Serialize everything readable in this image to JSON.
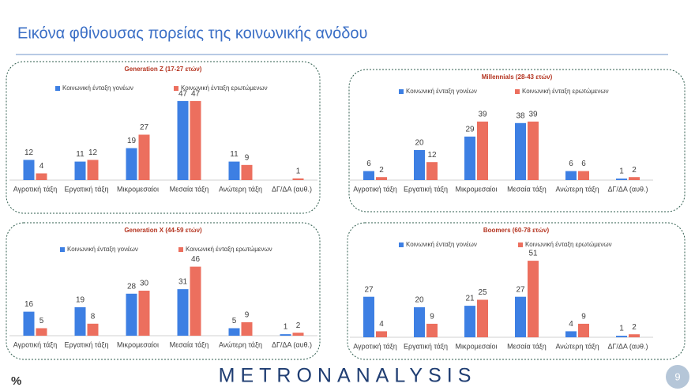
{
  "title": "Εικόνα φθίνουσας πορείας της κοινωνικής ανόδου",
  "unit": "%",
  "logo": "METRONANALYSIS",
  "page_number": "9",
  "chart_data": [
    {
      "type": "bar",
      "title": "Generation Z (17-27 ετών)",
      "categories": [
        "Αγροτική τάξη",
        "Εργατική τάξη",
        "Μικρομεσαίοι",
        "Μεσαία τάξη",
        "Ανώτερη τάξη",
        "ΔΓ/ΔΑ (αυθ.)"
      ],
      "series": [
        {
          "name": "Κοινωνική ένταξη γονέων",
          "color": "#3d7fe3",
          "values": [
            12,
            11,
            19,
            47,
            11,
            null
          ]
        },
        {
          "name": "Κοινωνική ένταξη ερωτώμενων",
          "color": "#ec6f5e",
          "values": [
            4,
            12,
            27,
            47,
            9,
            1
          ]
        }
      ]
    },
    {
      "type": "bar",
      "title": "Millennials (28-43 ετών)",
      "categories": [
        "Αγροτική τάξη",
        "Εργατική τάξη",
        "Μικρομεσαίοι",
        "Μεσαία τάξη",
        "Ανώτερη τάξη",
        "ΔΓ/ΔΑ (αυθ.)"
      ],
      "series": [
        {
          "name": "Κοινωνική ένταξη γονέων",
          "color": "#3d7fe3",
          "values": [
            6,
            20,
            29,
            38,
            6,
            1
          ]
        },
        {
          "name": "Κοινωνική ένταξη ερωτώμενων",
          "color": "#ec6f5e",
          "values": [
            2,
            12,
            39,
            39,
            6,
            2
          ]
        }
      ]
    },
    {
      "type": "bar",
      "title": "Generation X (44-59 ετών)",
      "categories": [
        "Αγροτική τάξη",
        "Εργατική τάξη",
        "Μικρομεσαίοι",
        "Μεσαία τάξη",
        "Ανώτερη τάξη",
        "ΔΓ/ΔΑ (αυθ.)"
      ],
      "series": [
        {
          "name": "Κοινωνική ένταξη γονέων",
          "color": "#3d7fe3",
          "values": [
            16,
            19,
            28,
            31,
            5,
            1
          ]
        },
        {
          "name": "Κοινωνική ένταξη ερωτώμενων",
          "color": "#ec6f5e",
          "values": [
            5,
            8,
            30,
            46,
            9,
            2
          ]
        }
      ]
    },
    {
      "type": "bar",
      "title": "Boomers (60-78 ετών)",
      "categories": [
        "Αγροτική τάξη",
        "Εργατική τάξη",
        "Μικρομεσαίοι",
        "Μεσαία τάξη",
        "Ανώτερη τάξη",
        "ΔΓ/ΔΑ (αυθ.)"
      ],
      "series": [
        {
          "name": "Κοινωνική ένταξη γονέων",
          "color": "#3d7fe3",
          "values": [
            27,
            20,
            21,
            27,
            4,
            1
          ]
        },
        {
          "name": "Κοινωνική ένταξη ερωτώμενων",
          "color": "#ec6f5e",
          "values": [
            4,
            9,
            25,
            51,
            9,
            2
          ]
        }
      ]
    }
  ]
}
